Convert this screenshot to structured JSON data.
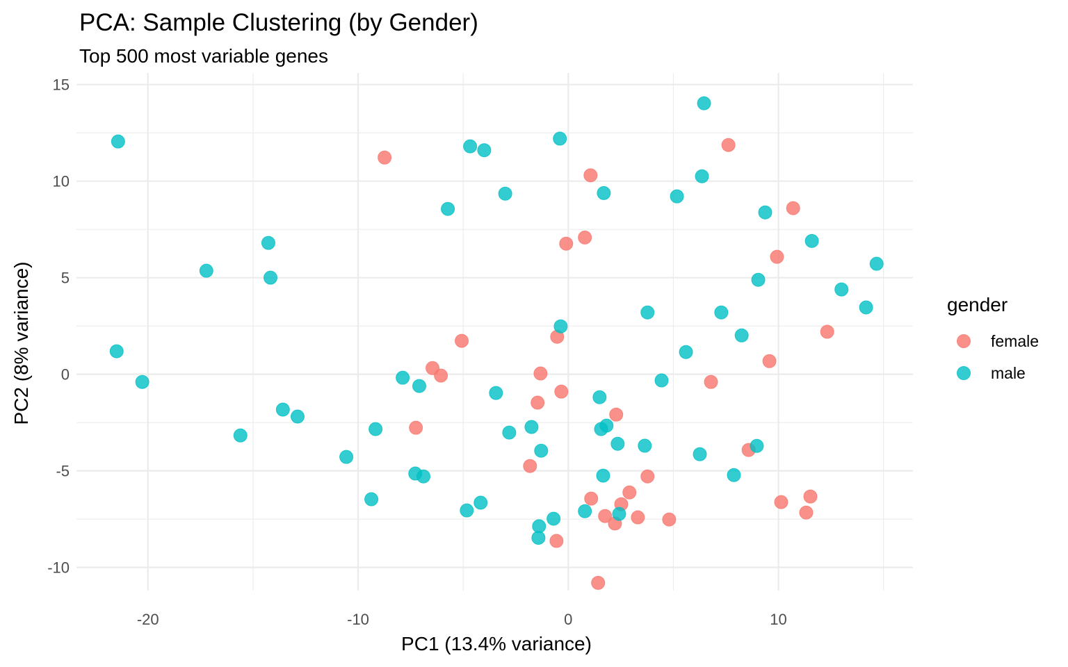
{
  "chart_data": {
    "type": "scatter",
    "title": "PCA: Sample Clustering (by Gender)",
    "subtitle": "Top 500 most variable genes",
    "xlabel": "PC1 (13.4% variance)",
    "ylabel": "PC2 (8% variance)",
    "xlim": [
      -23.4,
      16.4
    ],
    "ylim": [
      -11.2,
      15.6
    ],
    "x_ticks": [
      -20,
      -10,
      0,
      10
    ],
    "x_tick_labels": [
      "-20",
      "-10",
      "0",
      "10"
    ],
    "y_ticks": [
      -10,
      -5,
      0,
      5,
      10,
      15
    ],
    "y_tick_labels": [
      "-10",
      "-5",
      "0",
      "5",
      "10",
      "15"
    ],
    "grid": true,
    "legend": {
      "title": "gender",
      "position": "right"
    },
    "series": [
      {
        "name": "female",
        "color": "#F8766D",
        "points": [
          [
            -8.74,
            11.22
          ],
          [
            1.06,
            10.3
          ],
          [
            0.79,
            7.08
          ],
          [
            -0.1,
            6.76
          ],
          [
            7.62,
            11.87
          ],
          [
            10.7,
            8.6
          ],
          [
            9.93,
            6.08
          ],
          [
            12.32,
            2.2
          ],
          [
            9.57,
            0.68
          ],
          [
            6.79,
            -0.4
          ],
          [
            -0.53,
            1.94
          ],
          [
            -1.32,
            0.04
          ],
          [
            -0.33,
            -0.9
          ],
          [
            -1.46,
            -1.47
          ],
          [
            2.28,
            -2.09
          ],
          [
            -5.07,
            1.73
          ],
          [
            -6.46,
            0.32
          ],
          [
            -6.06,
            -0.07
          ],
          [
            -7.25,
            -2.77
          ],
          [
            -1.82,
            -4.75
          ],
          [
            -0.56,
            -8.63
          ],
          [
            3.77,
            -5.29
          ],
          [
            2.91,
            -6.12
          ],
          [
            1.09,
            -6.44
          ],
          [
            2.52,
            -6.73
          ],
          [
            1.75,
            -7.34
          ],
          [
            2.22,
            -7.73
          ],
          [
            3.31,
            -7.41
          ],
          [
            4.8,
            -7.52
          ],
          [
            1.42,
            -10.8
          ],
          [
            8.58,
            -3.92
          ],
          [
            10.13,
            -6.62
          ],
          [
            11.52,
            -6.33
          ],
          [
            11.32,
            -7.16
          ]
        ]
      },
      {
        "name": "male",
        "color": "#00BFC4",
        "points": [
          [
            -21.42,
            12.05
          ],
          [
            -4.67,
            11.8
          ],
          [
            -4.0,
            11.6
          ],
          [
            -0.4,
            12.2
          ],
          [
            1.69,
            9.38
          ],
          [
            -3.0,
            9.35
          ],
          [
            -5.73,
            8.56
          ],
          [
            6.46,
            14.03
          ],
          [
            6.36,
            10.25
          ],
          [
            5.17,
            9.21
          ],
          [
            9.37,
            8.38
          ],
          [
            11.59,
            6.9
          ],
          [
            9.04,
            4.89
          ],
          [
            14.67,
            5.72
          ],
          [
            13.0,
            4.39
          ],
          [
            14.17,
            3.46
          ],
          [
            3.77,
            3.2
          ],
          [
            7.28,
            3.2
          ],
          [
            8.25,
            2.01
          ],
          [
            5.6,
            1.15
          ],
          [
            4.44,
            -0.32
          ],
          [
            -0.36,
            2.48
          ],
          [
            1.49,
            -1.19
          ],
          [
            1.82,
            -2.66
          ],
          [
            1.56,
            -2.84
          ],
          [
            2.35,
            -3.6
          ],
          [
            3.64,
            -3.7
          ],
          [
            -1.75,
            -2.73
          ],
          [
            -1.29,
            -3.96
          ],
          [
            -7.88,
            -0.18
          ],
          [
            -7.09,
            -0.61
          ],
          [
            -3.44,
            -0.97
          ],
          [
            -9.17,
            -2.84
          ],
          [
            -2.81,
            -3.02
          ],
          [
            -21.49,
            1.19
          ],
          [
            -20.27,
            -0.4
          ],
          [
            -15.6,
            -3.17
          ],
          [
            -13.58,
            -1.83
          ],
          [
            -12.88,
            -2.19
          ],
          [
            -10.56,
            -4.28
          ],
          [
            -17.22,
            5.36
          ],
          [
            -14.27,
            6.8
          ],
          [
            -14.17,
            5.0
          ],
          [
            -7.28,
            -5.14
          ],
          [
            -6.89,
            -5.29
          ],
          [
            -9.37,
            -6.47
          ],
          [
            -4.83,
            -7.05
          ],
          [
            -4.17,
            -6.65
          ],
          [
            -1.39,
            -7.87
          ],
          [
            -0.7,
            -7.48
          ],
          [
            -1.42,
            -8.47
          ],
          [
            1.66,
            -5.25
          ],
          [
            0.79,
            -7.09
          ],
          [
            2.42,
            -7.23
          ],
          [
            6.26,
            -4.14
          ],
          [
            8.97,
            -3.71
          ],
          [
            7.88,
            -5.22
          ]
        ]
      }
    ]
  }
}
